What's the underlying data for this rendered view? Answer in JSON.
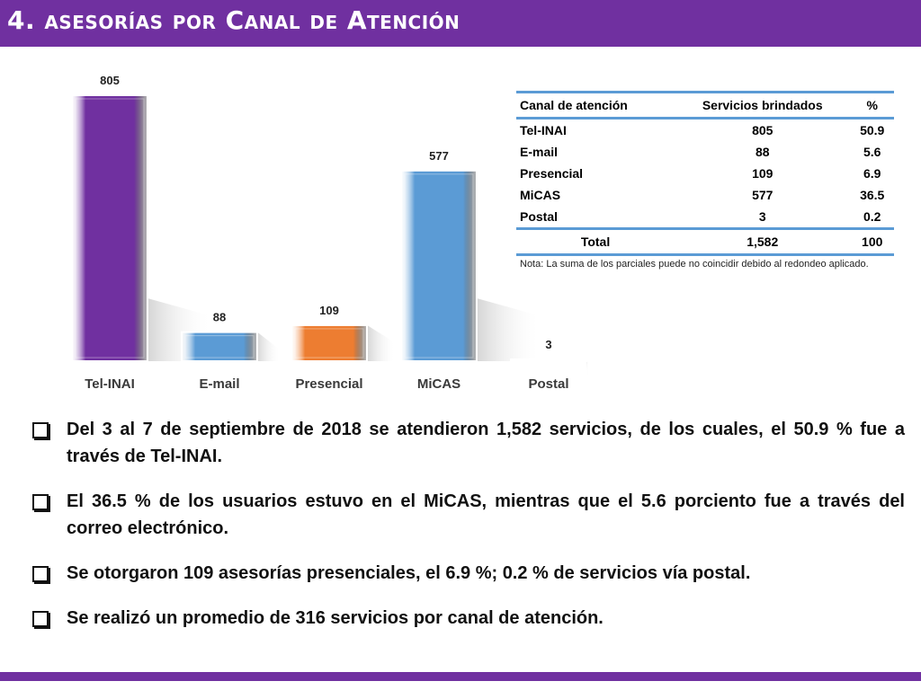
{
  "header": {
    "title": "4. asesorías por Canal de Atención"
  },
  "chart_data": {
    "type": "bar",
    "categories": [
      "Tel-INAI",
      "E-mail",
      "Presencial",
      "MiCAS",
      "Postal"
    ],
    "values": [
      805,
      88,
      109,
      577,
      3
    ],
    "colors": [
      "#7030a0",
      "#5b9bd5",
      "#ed7d31",
      "#5b9bd5",
      "#5b9bd5"
    ],
    "ylim": [
      0,
      805
    ],
    "grid": false,
    "legend": "none"
  },
  "table": {
    "headers": [
      "Canal de atención",
      "Servicios brindados",
      "%"
    ],
    "rows": [
      [
        "Tel-INAI",
        "805",
        "50.9"
      ],
      [
        "E-mail",
        "88",
        "5.6"
      ],
      [
        "Presencial",
        "109",
        "6.9"
      ],
      [
        "MiCAS",
        "577",
        "36.5"
      ],
      [
        "Postal",
        "3",
        "0.2"
      ]
    ],
    "total": [
      "Total",
      "1,582",
      "100"
    ],
    "note": "Nota: La suma de los parciales puede no coincidir debido al redondeo aplicado."
  },
  "bullets": [
    "Del 3 al 7 de septiembre de 2018 se atendieron 1,582 servicios, de los cuales, el 50.9 % fue a través de Tel-INAI.",
    "El 36.5 % de los usuarios estuvo en el MiCAS, mientras que el 5.6 porciento fue a través del correo electrónico.",
    "Se otorgaron 109 asesorías presenciales, el 6.9 %; 0.2 % de servicios vía postal.",
    "Se realizó un promedio de 316 servicios por canal de atención."
  ]
}
